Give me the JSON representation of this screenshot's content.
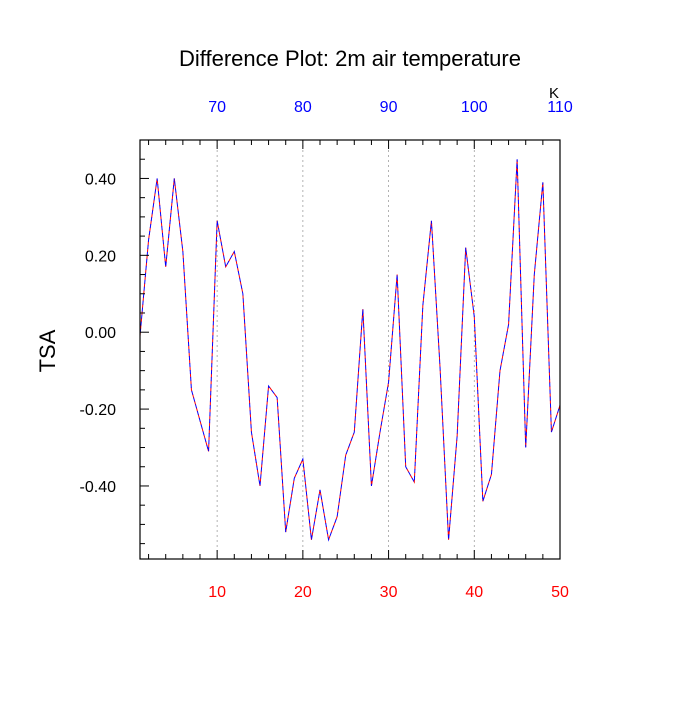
{
  "chart_data": {
    "type": "line",
    "title": "Difference Plot: 2m air temperature",
    "ylabel": "TSA",
    "units": "K",
    "xlim": [
      1,
      50
    ],
    "ylim": [
      -0.59,
      0.5
    ],
    "bottom_axis": {
      "ticks": [
        10,
        20,
        30,
        40,
        50
      ],
      "labels": [
        "10",
        "20",
        "30",
        "40",
        "50"
      ],
      "label_color": "#ff0000"
    },
    "top_axis": {
      "ticks": [
        70,
        80,
        90,
        100,
        110
      ],
      "labels": [
        "70",
        "80",
        "90",
        "100",
        "110"
      ],
      "label_color": "#0000ff",
      "offset_from_bottom": 60
    },
    "y_ticks": [
      0.4,
      0.2,
      0.0,
      -0.2,
      -0.4
    ],
    "y_tick_labels": [
      "0.40",
      "0.20",
      "0.00",
      "-0.20",
      "-0.40"
    ],
    "grid": "vertical dashed at major x ticks",
    "series": [
      {
        "color_a": "#ff0000",
        "color_b": "#0000ff",
        "dash": "dashed",
        "x": [
          1,
          2,
          3,
          4,
          5,
          6,
          7,
          8,
          9,
          10,
          11,
          12,
          13,
          14,
          15,
          16,
          17,
          18,
          19,
          20,
          21,
          22,
          23,
          24,
          25,
          26,
          27,
          28,
          29,
          30,
          31,
          32,
          33,
          34,
          35,
          36,
          37,
          38,
          39,
          40,
          41,
          42,
          43,
          44,
          45,
          46,
          47,
          48,
          49,
          50
        ],
        "values": [
          -0.01,
          0.24,
          0.4,
          0.17,
          0.4,
          0.21,
          -0.15,
          -0.23,
          -0.31,
          0.29,
          0.17,
          0.21,
          0.1,
          -0.26,
          -0.4,
          -0.14,
          -0.17,
          -0.52,
          -0.38,
          -0.33,
          -0.54,
          -0.41,
          -0.54,
          -0.48,
          -0.32,
          -0.26,
          0.06,
          -0.4,
          -0.26,
          -0.13,
          0.15,
          -0.35,
          -0.39,
          0.07,
          0.29,
          -0.09,
          -0.54,
          -0.27,
          0.22,
          0.04,
          -0.44,
          -0.37,
          -0.1,
          0.02,
          0.45,
          -0.3,
          0.15,
          0.39,
          -0.26,
          -0.19
        ]
      }
    ]
  }
}
